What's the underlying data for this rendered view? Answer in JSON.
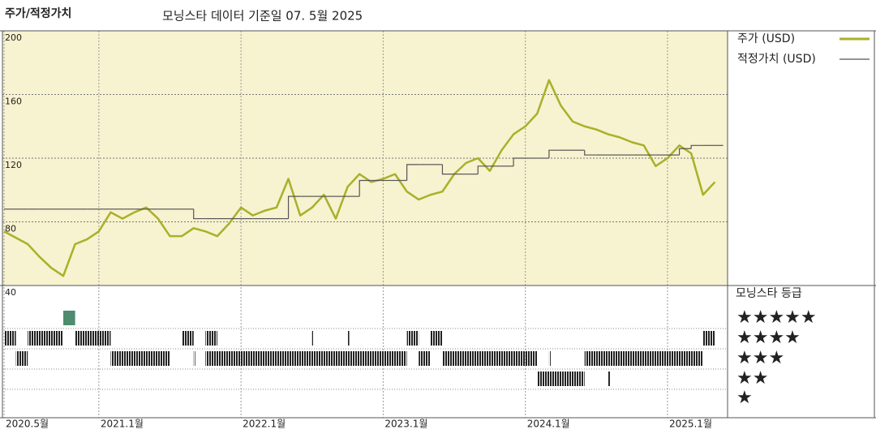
{
  "chart_data": [
    {
      "type": "line",
      "title": "주가/적정가치",
      "subtitle": "모닝스타 데이터 기준일 07. 5월 2025",
      "x": [
        "2020-05",
        "2020-06",
        "2020-07",
        "2020-08",
        "2020-09",
        "2020-10",
        "2020-11",
        "2020-12",
        "2021-01",
        "2021-02",
        "2021-03",
        "2021-04",
        "2021-05",
        "2021-06",
        "2021-07",
        "2021-08",
        "2021-09",
        "2021-10",
        "2021-11",
        "2021-12",
        "2022-01",
        "2022-02",
        "2022-03",
        "2022-04",
        "2022-05",
        "2022-06",
        "2022-07",
        "2022-08",
        "2022-09",
        "2022-10",
        "2022-11",
        "2022-12",
        "2023-01",
        "2023-02",
        "2023-03",
        "2023-04",
        "2023-05",
        "2023-06",
        "2023-07",
        "2023-08",
        "2023-09",
        "2023-10",
        "2023-11",
        "2023-12",
        "2024-01",
        "2024-02",
        "2024-03",
        "2024-04",
        "2024-05",
        "2024-06",
        "2024-07",
        "2024-08",
        "2024-09",
        "2024-10",
        "2024-11",
        "2024-12",
        "2025-01",
        "2025-02",
        "2025-03",
        "2025-04",
        "2025-05"
      ],
      "series": [
        {
          "name": "주가 (USD)",
          "color": "#a9b02a",
          "values": [
            74,
            70,
            66,
            58,
            51,
            46,
            66,
            69,
            74,
            86,
            82,
            86,
            89,
            82,
            71,
            71,
            76,
            74,
            71,
            79,
            89,
            84,
            87,
            89,
            107,
            84,
            89,
            97,
            82,
            102,
            110,
            105,
            107,
            110,
            99,
            94,
            97,
            99,
            110,
            117,
            120,
            112,
            125,
            135,
            140,
            148,
            169,
            153,
            143,
            140,
            138,
            135,
            133,
            130,
            128,
            115,
            120,
            128,
            123,
            97,
            105
          ]
        },
        {
          "name": "적정가치 (USD)",
          "color": "#555555",
          "step": true,
          "values": [
            88,
            88,
            88,
            88,
            88,
            88,
            88,
            88,
            88,
            88,
            88,
            88,
            88,
            88,
            88,
            88,
            82,
            82,
            82,
            82,
            82,
            82,
            82,
            82,
            96,
            96,
            96,
            96,
            96,
            96,
            106,
            106,
            106,
            106,
            116,
            116,
            116,
            110,
            110,
            110,
            115,
            115,
            115,
            120,
            120,
            120,
            125,
            125,
            125,
            122,
            122,
            122,
            122,
            122,
            122,
            122,
            122,
            126,
            128,
            128,
            128
          ]
        }
      ],
      "xlim": [
        "2020-05",
        "2025-06"
      ],
      "xticks": [
        {
          "value": "2020-05",
          "label": "2020.5월"
        },
        {
          "value": "2021-01",
          "label": "2021.1월"
        },
        {
          "value": "2022-01",
          "label": "2022.1월"
        },
        {
          "value": "2023-01",
          "label": "2023.1월"
        },
        {
          "value": "2024-01",
          "label": "2024.1월"
        },
        {
          "value": "2025-01",
          "label": "2025.1월"
        }
      ],
      "ylim": [
        40,
        200
      ],
      "yticks": [
        40,
        80,
        120,
        160,
        200
      ],
      "grid": true,
      "background": "#f7f2cf"
    },
    {
      "type": "timeline",
      "title": "모닝스타 등급",
      "rating_labels": [
        "★★★★★",
        "★★★★",
        "★★★",
        "★★",
        "★"
      ],
      "star_colors": [
        "#4e8b6f",
        "#222222",
        "#222222",
        "#222222",
        "#222222"
      ],
      "xlim": [
        "2020-05",
        "2025-06"
      ],
      "segments": [
        {
          "stars": 5,
          "start": "2020-10",
          "end": "2020-11"
        },
        {
          "stars": 4,
          "start": "2020-05",
          "end": "2020-06"
        },
        {
          "stars": 4,
          "start": "2020-07",
          "end": "2020-10"
        },
        {
          "stars": 4,
          "start": "2020-11",
          "end": "2021-02"
        },
        {
          "stars": 4,
          "start": "2021-08",
          "end": "2021-09"
        },
        {
          "stars": 4,
          "start": "2021-10",
          "end": "2021-11"
        },
        {
          "stars": 4,
          "start": "2022-07",
          "end": "2022-07"
        },
        {
          "stars": 4,
          "start": "2022-10",
          "end": "2022-10"
        },
        {
          "stars": 4,
          "start": "2023-03",
          "end": "2023-04"
        },
        {
          "stars": 4,
          "start": "2023-05",
          "end": "2023-06"
        },
        {
          "stars": 4,
          "start": "2025-04",
          "end": "2025-05"
        },
        {
          "stars": 3,
          "start": "2020-06",
          "end": "2020-07"
        },
        {
          "stars": 3,
          "start": "2021-02",
          "end": "2021-07"
        },
        {
          "stars": 3,
          "start": "2021-09",
          "end": "2021-09"
        },
        {
          "stars": 3,
          "start": "2021-10",
          "end": "2023-03"
        },
        {
          "stars": 3,
          "start": "2023-04",
          "end": "2023-05"
        },
        {
          "stars": 3,
          "start": "2023-06",
          "end": "2024-02"
        },
        {
          "stars": 3,
          "start": "2024-03",
          "end": "2024-03"
        },
        {
          "stars": 3,
          "start": "2024-06",
          "end": "2025-04"
        },
        {
          "stars": 2,
          "start": "2024-02",
          "end": "2024-06"
        },
        {
          "stars": 2,
          "start": "2024-08",
          "end": "2024-08"
        }
      ]
    }
  ]
}
